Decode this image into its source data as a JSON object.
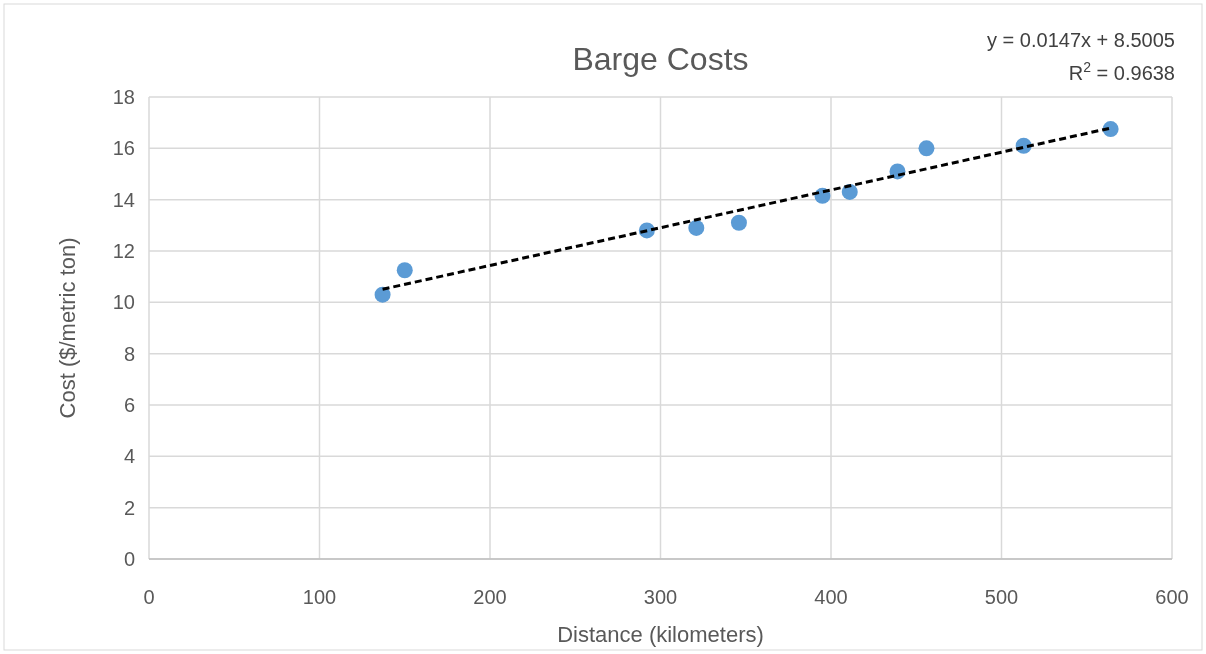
{
  "chart_data": {
    "type": "scatter",
    "title": "Barge Costs",
    "xlabel": "Distance (kilometers)",
    "ylabel": "Cost ($/metric ton)",
    "xlim": [
      0,
      600
    ],
    "xticks": [
      0,
      100,
      200,
      300,
      400,
      500,
      600
    ],
    "ylim": [
      0,
      18
    ],
    "yticks": [
      0,
      2,
      4,
      6,
      8,
      10,
      12,
      14,
      16,
      18
    ],
    "grid": true,
    "marker": "circle",
    "series": [
      {
        "color": "#5b9bd5",
        "x": [
          137,
          150,
          292,
          321,
          346,
          395,
          411,
          439,
          456,
          513,
          564
        ],
        "values": [
          10.3,
          11.25,
          12.8,
          12.9,
          13.1,
          14.15,
          14.3,
          15.1,
          16.0,
          16.1,
          16.75
        ]
      },
      {
        "type": "line",
        "color": "#000000",
        "line_style": "dashed",
        "marker": "none",
        "x": [
          137,
          564
        ],
        "values": [
          10.51,
          16.79
        ]
      }
    ],
    "annotations": [
      "y = 0.0147x + 8.5005",
      "R$^{2}$ = 0.9638"
    ]
  }
}
